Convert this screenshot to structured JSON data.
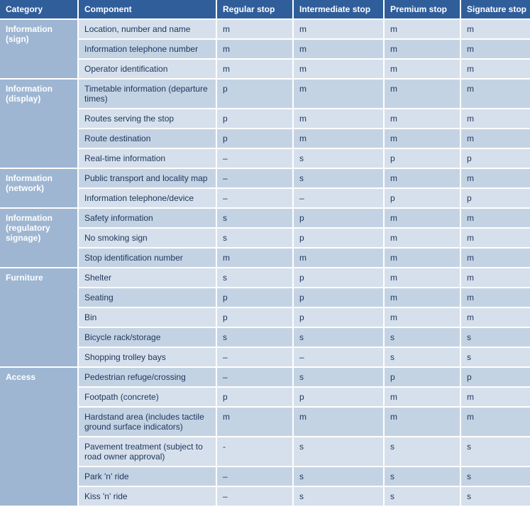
{
  "colors": {
    "header_bg": "#2f5e9b",
    "header_fg": "#ffffff",
    "cat_bg": "#9eb6d2",
    "cat_fg": "#ffffff",
    "row_a_bg": "#d6e0ec",
    "row_b_bg": "#c4d3e4",
    "row_fg": "#1c3559",
    "border": "#ffffff"
  },
  "headers": {
    "category": "Category",
    "component": "Component",
    "regular": "Regular stop",
    "intermediate": "Intermediate stop",
    "premium": "Premium stop",
    "signature": "Signature stop"
  },
  "categories": [
    {
      "name": "Information (sign)",
      "rows": [
        {
          "component": "Location, number and name",
          "reg": "m",
          "int": "m",
          "pre": "m",
          "sig": "m"
        },
        {
          "component": "Information telephone number",
          "reg": "m",
          "int": "m",
          "pre": "m",
          "sig": "m"
        },
        {
          "component": "Operator identification",
          "reg": "m",
          "int": "m",
          "pre": "m",
          "sig": "m"
        }
      ]
    },
    {
      "name": "Information (display)",
      "rows": [
        {
          "component": "Timetable information (departure times)",
          "reg": "p",
          "int": "m",
          "pre": "m",
          "sig": "m"
        },
        {
          "component": "Routes serving the stop",
          "reg": "p",
          "int": "m",
          "pre": "m",
          "sig": "m"
        },
        {
          "component": "Route destination",
          "reg": "p",
          "int": "m",
          "pre": "m",
          "sig": "m"
        },
        {
          "component": "Real-time information",
          "reg": "–",
          "int": "s",
          "pre": "p",
          "sig": "p"
        }
      ]
    },
    {
      "name": "Information (network)",
      "rows": [
        {
          "component": "Public transport and locality map",
          "reg": "–",
          "int": "s",
          "pre": "m",
          "sig": "m"
        },
        {
          "component": "Information telephone/device",
          "reg": "–",
          "int": "–",
          "pre": "p",
          "sig": "p"
        }
      ]
    },
    {
      "name": "Information (regulatory signage)",
      "rows": [
        {
          "component": "Safety information",
          "reg": "s",
          "int": "p",
          "pre": "m",
          "sig": "m"
        },
        {
          "component": "No smoking sign",
          "reg": "s",
          "int": "p",
          "pre": "m",
          "sig": "m"
        },
        {
          "component": "Stop identification number",
          "reg": "m",
          "int": "m",
          "pre": "m",
          "sig": "m"
        }
      ]
    },
    {
      "name": "Furniture",
      "rows": [
        {
          "component": "Shelter",
          "reg": "s",
          "int": "p",
          "pre": "m",
          "sig": "m"
        },
        {
          "component": "Seating",
          "reg": "p",
          "int": "p",
          "pre": "m",
          "sig": "m"
        },
        {
          "component": "Bin",
          "reg": "p",
          "int": "p",
          "pre": "m",
          "sig": "m"
        },
        {
          "component": "Bicycle rack/storage",
          "reg": "s",
          "int": "s",
          "pre": "s",
          "sig": "s"
        },
        {
          "component": "Shopping trolley bays",
          "reg": "–",
          "int": "–",
          "pre": "s",
          "sig": "s"
        }
      ]
    },
    {
      "name": "Access",
      "rows": [
        {
          "component": "Pedestrian refuge/crossing",
          "reg": "–",
          "int": "s",
          "pre": "p",
          "sig": "p"
        },
        {
          "component": "Footpath (concrete)",
          "reg": "p",
          "int": "p",
          "pre": "m",
          "sig": "m"
        },
        {
          "component": "Hardstand area (includes tactile ground surface indicators)",
          "reg": "m",
          "int": "m",
          "pre": "m",
          "sig": "m"
        },
        {
          "component": "Pavement treatment (subject to road owner approval)",
          "reg": "-",
          "int": "s",
          "pre": "s",
          "sig": "s"
        },
        {
          "component": "Park 'n' ride",
          "reg": "–",
          "int": "s",
          "pre": "s",
          "sig": "s"
        },
        {
          "component": "Kiss 'n' ride",
          "reg": "–",
          "int": "s",
          "pre": "s",
          "sig": "s"
        }
      ]
    }
  ]
}
